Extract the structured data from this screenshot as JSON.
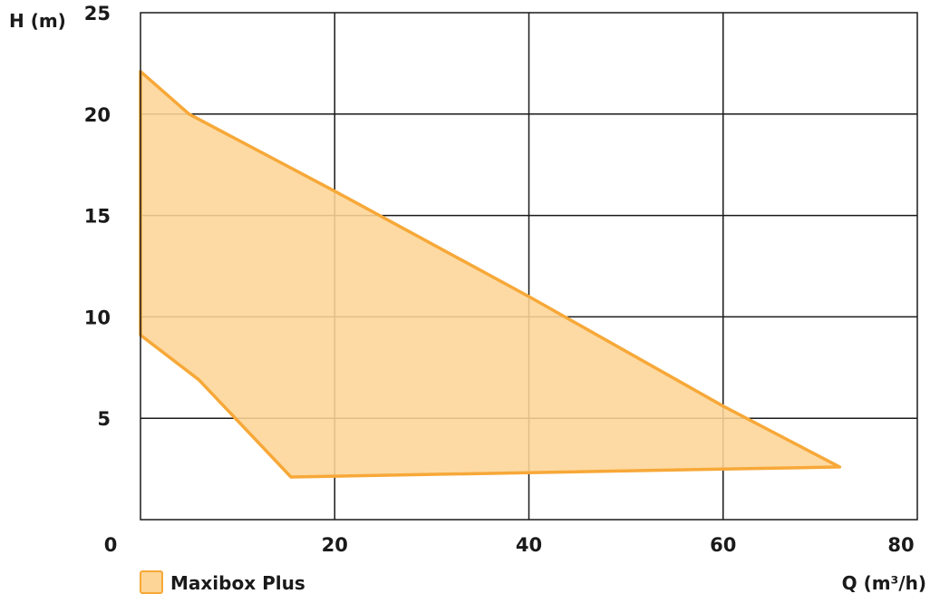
{
  "chart_data": {
    "type": "area",
    "title": "",
    "xlabel": "Q (m³/h)",
    "ylabel": "H (m)",
    "xlim": [
      0,
      80
    ],
    "ylim": [
      0,
      25
    ],
    "x_ticks": [
      0,
      20,
      40,
      60,
      80
    ],
    "y_ticks": [
      5,
      10,
      15,
      20,
      25
    ],
    "x_tick_labels": [
      "0",
      "20",
      "40",
      "60",
      "80"
    ],
    "y_tick_labels": [
      "5",
      "10",
      "15",
      "20",
      "25"
    ],
    "grid": true,
    "legend_position": "bottom-left",
    "series": [
      {
        "name": "Maxibox Plus",
        "fill_color": "#fdd596",
        "stroke_color": "#f7a838",
        "points": [
          {
            "x": 0,
            "y": 22.1
          },
          {
            "x": 5,
            "y": 20
          },
          {
            "x": 20,
            "y": 16.2
          },
          {
            "x": 40,
            "y": 11
          },
          {
            "x": 60,
            "y": 5.6
          },
          {
            "x": 72,
            "y": 2.6
          },
          {
            "x": 15.5,
            "y": 2.1
          },
          {
            "x": 6,
            "y": 6.9
          },
          {
            "x": 0,
            "y": 9.1
          }
        ]
      }
    ]
  },
  "colors": {
    "grid": "#1a1a1a",
    "text": "#1a1a1a"
  }
}
